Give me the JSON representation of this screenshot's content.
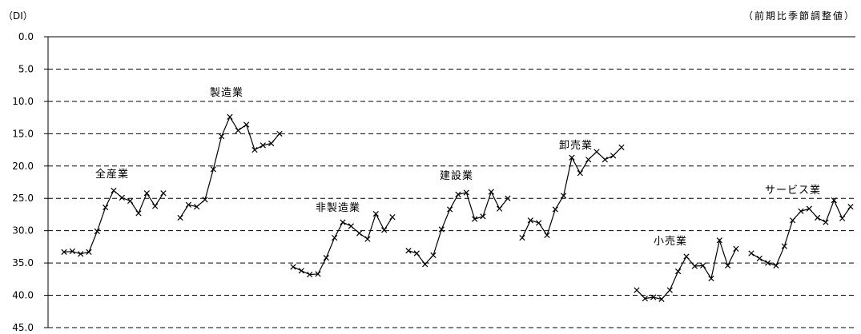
{
  "chart_data": {
    "type": "line",
    "ylabel": "（DI）",
    "unit_note": "（前期比季節調整値）",
    "ylim": [
      0,
      45
    ],
    "y_inverted": true,
    "y_ticks": [
      "0.0",
      "5.0",
      "10.0",
      "15.0",
      "20.0",
      "25.0",
      "30.0",
      "35.0",
      "40.0",
      "45.0"
    ],
    "grid": true,
    "series": [
      {
        "name": "全産業",
        "values": [
          33.3,
          33.2,
          33.6,
          33.3,
          30.1,
          26.4,
          23.8,
          24.9,
          25.4,
          27.3,
          24.2,
          26.2,
          24.2
        ]
      },
      {
        "name": "製造業",
        "values": [
          28.0,
          26.0,
          26.3,
          25.2,
          20.5,
          15.4,
          12.4,
          14.5,
          13.6,
          17.5,
          16.8,
          16.5,
          15.0
        ]
      },
      {
        "name": "非製造業",
        "values": [
          35.6,
          36.2,
          36.8,
          36.7,
          34.2,
          31.1,
          28.7,
          29.3,
          30.4,
          31.3,
          27.4,
          29.9,
          27.9
        ]
      },
      {
        "name": "建設業",
        "values": [
          33.1,
          33.5,
          35.2,
          33.8,
          29.8,
          26.7,
          24.4,
          24.1,
          28.2,
          27.8,
          24.0,
          26.6,
          25.0
        ]
      },
      {
        "name": "卸売業",
        "values": [
          31.1,
          28.4,
          28.8,
          30.7,
          26.7,
          24.6,
          18.7,
          21.1,
          19.0,
          17.8,
          19.0,
          18.4,
          17.1
        ]
      },
      {
        "name": "小売業",
        "values": [
          39.2,
          40.5,
          40.3,
          40.6,
          39.2,
          36.3,
          34.0,
          35.5,
          35.4,
          37.4,
          31.5,
          35.4,
          32.8
        ]
      },
      {
        "name": "サービス業",
        "values": [
          33.5,
          34.3,
          35.0,
          35.4,
          32.4,
          28.4,
          27.0,
          26.6,
          28.0,
          28.7,
          25.3,
          28.1,
          26.3
        ]
      }
    ]
  }
}
